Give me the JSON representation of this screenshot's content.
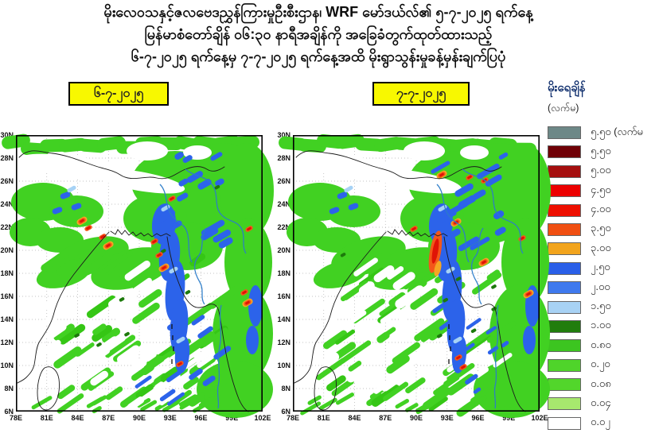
{
  "header": {
    "line1": "မိုးလေဝသနှင့်ဇလဗေဒညွှန်ကြားမှုဦးစီးဌာန၊ WRF မော်ဒယ်လ်၏ ၅-၇-၂၀၂၅ ရက်နေ့",
    "line2": "မြန်မာစံတော်ချိန် ဝ၆:၃၀ နာရီအချိန်ကို အခြေခံတွက်ထုတ်ထားသည့်",
    "line3": "၆-၇-၂၀၂၅ ရက်နေ့မှ ၇-၇-၂၀၂၅ ရက်နေ့အထိ မိုးရွာသွန်းမှုခန့်မှန်းချက်ပြပုံ"
  },
  "panels": [
    {
      "date_label": "၆-၇-၂၀၂၅"
    },
    {
      "date_label": "၇-၇-၂၀၂၅"
    }
  ],
  "axes": {
    "lat_ticks": [
      "30N",
      "28N",
      "26N",
      "24N",
      "22N",
      "20N",
      "18N",
      "16N",
      "14N",
      "12N",
      "10N",
      "8N",
      "6N"
    ],
    "lon_ticks": [
      "78E",
      "81E",
      "84E",
      "87E",
      "90E",
      "93E",
      "96E",
      "99E",
      "102E"
    ]
  },
  "legend": {
    "title": "မိုးရေချိန်",
    "unit": "(လက်မ)",
    "entries": [
      {
        "color": "#6d8887",
        "label": "၅.၅၀ (လက်မ"
      },
      {
        "color": "#700006",
        "label": "၅.၅၀"
      },
      {
        "color": "#a50f0f",
        "label": "၅.၀၀"
      },
      {
        "color": "#ec0000",
        "label": "၄.၅၀"
      },
      {
        "color": "#ee0f00",
        "label": "၄.၀၀"
      },
      {
        "color": "#f04f12",
        "label": "၃.၅၀"
      },
      {
        "color": "#f2a41d",
        "label": "၃.၀၀"
      },
      {
        "color": "#2a5fe8",
        "label": "၂.၅၀"
      },
      {
        "color": "#3f79ee",
        "label": "၂.၀၀"
      },
      {
        "color": "#a8d2f4",
        "label": "၁.၅၀"
      },
      {
        "color": "#217d0d",
        "label": "၁.၀၀"
      },
      {
        "color": "#3cc520",
        "label": "၀.၈၀"
      },
      {
        "color": "#4fd42a",
        "label": "၀.၂၀"
      },
      {
        "color": "#52d62b",
        "label": "၀.၀၈"
      },
      {
        "color": "#a7e86e",
        "label": "၀.၀၄"
      },
      {
        "color": "#ffffff",
        "label": "၀.၀၂"
      }
    ]
  },
  "colors": {
    "badge_bg": "#f8f800",
    "map_green": "#41d122",
    "map_blue": "#2c63ea",
    "map_orange": "#f3571a"
  },
  "chart_data": {
    "type": "heatmap",
    "title": "WRF model 24-hr rainfall forecast maps, Dept. of Meteorology and Hydrology (Myanmar), based on 5-7-2025 06:30 MST run, valid 6-7-2025 to 7-7-2025",
    "panels": [
      "၆-၇-၂၀၂၅",
      "၇-၇-၂၀၂၅"
    ],
    "x_ticks": [
      "78E",
      "81E",
      "84E",
      "87E",
      "90E",
      "93E",
      "96E",
      "99E",
      "102E"
    ],
    "y_ticks": [
      "30N",
      "28N",
      "26N",
      "24N",
      "22N",
      "20N",
      "18N",
      "16N",
      "14N",
      "12N",
      "10N",
      "8N",
      "6N"
    ],
    "x_range_deg": [
      78,
      102
    ],
    "y_range_deg": [
      6,
      30
    ],
    "legend_unit": "လက်မ (inches)",
    "legend_bins_inches": [
      5.5,
      5.0,
      4.5,
      4.0,
      3.5,
      3.0,
      2.5,
      2.0,
      1.5,
      1.0,
      0.8,
      0.2,
      0.08,
      0.04,
      0.02
    ],
    "legend_note_top_bin": "၅.၅၀ (လက်မ and above, gray swatch)",
    "grid": true,
    "legend_position": "right"
  }
}
